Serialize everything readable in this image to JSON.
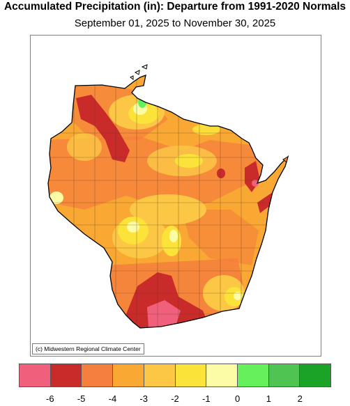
{
  "title": "Accumulated Precipitation (in): Departure from 1991-2020 Normals",
  "subtitle": "September 01, 2025 to November 30, 2025",
  "credit": "(c) Midwestern Regional Climate Center",
  "legend": {
    "colors": [
      "#f0607c",
      "#c92a2a",
      "#f57f3c",
      "#f9a834",
      "#fbc745",
      "#fbe33a",
      "#fdfca6",
      "#66f15c",
      "#4fc452",
      "#1aa326"
    ],
    "ticks": [
      "-6",
      "-5",
      "-4",
      "-3",
      "-2",
      "-1",
      "0",
      "1",
      "2"
    ]
  },
  "colors": {
    "deep_red": "#c92a2a",
    "pink": "#f0607c",
    "orange": "#f57f3c",
    "light_orange": "#f9a834",
    "yellow_orange": "#fbc745",
    "yellow": "#fbe33a",
    "pale_yellow": "#fdfca6",
    "green": "#66f15c"
  }
}
